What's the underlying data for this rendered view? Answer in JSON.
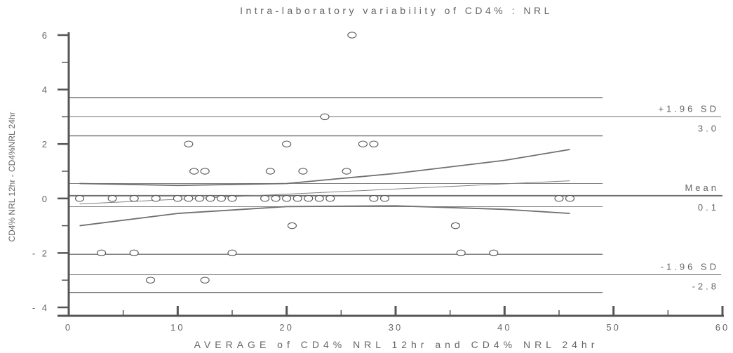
{
  "chart_data": {
    "type": "scatter",
    "title": "Intra-laboratory variability of CD4% : NRL",
    "xlabel": "AVERAGE of CD4% NRL 12hr and CD4% NRL 24hr",
    "ylabel": "CD4% NRL 12hr - CD4%NRL 24hr",
    "xlim": [
      0,
      60
    ],
    "ylim": [
      -4,
      6
    ],
    "xticks": [
      0,
      10,
      20,
      30,
      40,
      50,
      60
    ],
    "yticks": [
      -4,
      -2,
      0,
      2,
      4,
      6
    ],
    "points": [
      [
        1,
        0
      ],
      [
        4,
        0
      ],
      [
        6,
        0
      ],
      [
        8,
        0
      ],
      [
        10,
        0
      ],
      [
        11,
        0
      ],
      [
        12,
        0
      ],
      [
        13,
        0
      ],
      [
        14,
        0
      ],
      [
        15,
        0
      ],
      [
        18,
        0
      ],
      [
        19,
        0
      ],
      [
        20,
        0
      ],
      [
        21,
        0
      ],
      [
        22,
        0
      ],
      [
        23,
        0
      ],
      [
        24,
        0
      ],
      [
        28,
        0
      ],
      [
        29,
        0
      ],
      [
        45,
        0
      ],
      [
        46,
        0
      ],
      [
        11,
        2
      ],
      [
        20,
        2
      ],
      [
        27,
        2
      ],
      [
        28,
        2
      ],
      [
        11.5,
        1
      ],
      [
        12.5,
        1
      ],
      [
        18.5,
        1
      ],
      [
        21.5,
        1
      ],
      [
        25.5,
        1
      ],
      [
        26,
        6
      ],
      [
        23.5,
        3
      ],
      [
        20.5,
        -1
      ],
      [
        35.5,
        -1
      ],
      [
        3,
        -2
      ],
      [
        6,
        -2
      ],
      [
        15,
        -2
      ],
      [
        36,
        -2
      ],
      [
        39,
        -2
      ],
      [
        7.5,
        -3
      ],
      [
        12.5,
        -3
      ]
    ],
    "reference_lines": [
      {
        "name": "+1.96 SD",
        "label": "+1.96 SD",
        "value": 3.0,
        "value_label": "3.0",
        "ci": [
          2.3,
          3.7
        ]
      },
      {
        "name": "Mean",
        "label": "Mean",
        "value": 0.1,
        "value_label": "0.1",
        "ci": [
          -0.3,
          0.55
        ]
      },
      {
        "name": "-1.96 SD",
        "label": "-1.96 SD",
        "value": -2.8,
        "value_label": "-2.8",
        "ci": [
          -3.45,
          -2.05
        ]
      }
    ],
    "regression": {
      "fit": [
        [
          1,
          -0.2
        ],
        [
          46,
          0.65
        ]
      ],
      "upper_ci": [
        [
          1,
          0.55
        ],
        [
          10,
          0.48
        ],
        [
          20,
          0.55
        ],
        [
          30,
          0.92
        ],
        [
          40,
          1.4
        ],
        [
          46,
          1.8
        ]
      ],
      "lower_ci": [
        [
          1,
          -1.0
        ],
        [
          10,
          -0.55
        ],
        [
          20,
          -0.3
        ],
        [
          30,
          -0.27
        ],
        [
          40,
          -0.4
        ],
        [
          46,
          -0.55
        ]
      ]
    }
  }
}
